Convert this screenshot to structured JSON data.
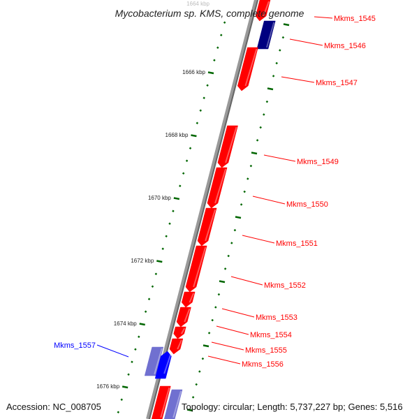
{
  "title": "Mycobacterium sp. KMS, complete genome",
  "accession": "Accession: NC_008705",
  "topology": "Topology: circular; Length: 5,737,227 bp; Genes: 5,516",
  "colors": {
    "forward": "#ff0000",
    "reverse": "#0000ff",
    "dark": "#000080",
    "pale": "#7070d0",
    "backbone": "#888888",
    "ticks": "#006600"
  },
  "tick_labels": [
    "1664 kbp",
    "1666 kbp",
    "1668 kbp",
    "1670 kbp",
    "1672 kbp",
    "1674 kbp",
    "1676 kbp"
  ],
  "genes": [
    {
      "label": "Mkms_1545",
      "color": "#ff0000"
    },
    {
      "label": "Mkms_1546",
      "color": "#ff0000"
    },
    {
      "label": "Mkms_1547",
      "color": "#ff0000"
    },
    {
      "label": "Mkms_1549",
      "color": "#ff0000"
    },
    {
      "label": "Mkms_1550",
      "color": "#ff0000"
    },
    {
      "label": "Mkms_1551",
      "color": "#ff0000"
    },
    {
      "label": "Mkms_1552",
      "color": "#ff0000"
    },
    {
      "label": "Mkms_1553",
      "color": "#ff0000"
    },
    {
      "label": "Mkms_1554",
      "color": "#ff0000"
    },
    {
      "label": "Mkms_1555",
      "color": "#ff0000"
    },
    {
      "label": "Mkms_1556",
      "color": "#ff0000"
    },
    {
      "label": "Mkms_1557",
      "color": "#0000ff"
    }
  ]
}
